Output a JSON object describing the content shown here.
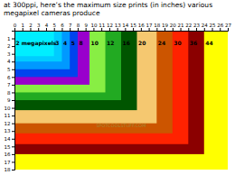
{
  "chart_data": {
    "type": "rect",
    "title": "at 300ppi, here’s the maximum size prints (in inches) various megapixel cameras produce",
    "categories": [
      "44",
      "36",
      "30",
      "24",
      "20",
      "16",
      "12",
      "10",
      "8",
      "5",
      "4",
      "3",
      "2 megapixels"
    ],
    "widths": [
      27.0,
      24.0,
      22.0,
      20.0,
      18.0,
      15.5,
      13.5,
      11.5,
      9.5,
      8.0,
      7.0,
      6.0,
      5.0
    ],
    "values": [
      18.0,
      16.0,
      14.7,
      13.3,
      12.0,
      10.3,
      9.0,
      8.0,
      7.0,
      6.0,
      5.0,
      4.0,
      3.3
    ],
    "colors": [
      "#FFFF00",
      "#8B0000",
      "#FF2200",
      "#CC5500",
      "#F5C870",
      "#005500",
      "#22AA22",
      "#88EE44",
      "#9900CC",
      "#0044EE",
      "#0099FF",
      "#00CCFF",
      "#00EEFF"
    ],
    "annotations": [
      {
        "text": "SPOTCOOLSTUFF.COM",
        "x": 13.5,
        "y": 12.3
      }
    ],
    "xlim": [
      0,
      27
    ],
    "ylim": [
      0,
      18
    ],
    "xticks": [
      0,
      1,
      2,
      3,
      4,
      5,
      6,
      7,
      8,
      9,
      10,
      11,
      12,
      13,
      14,
      15,
      16,
      17,
      18,
      19,
      20,
      21,
      22,
      23,
      24,
      25,
      26,
      27
    ],
    "yticks": [
      1,
      2,
      3,
      4,
      5,
      6,
      7,
      8,
      9,
      10,
      11,
      12,
      13,
      14,
      15,
      16,
      17,
      18
    ],
    "grid": false
  }
}
